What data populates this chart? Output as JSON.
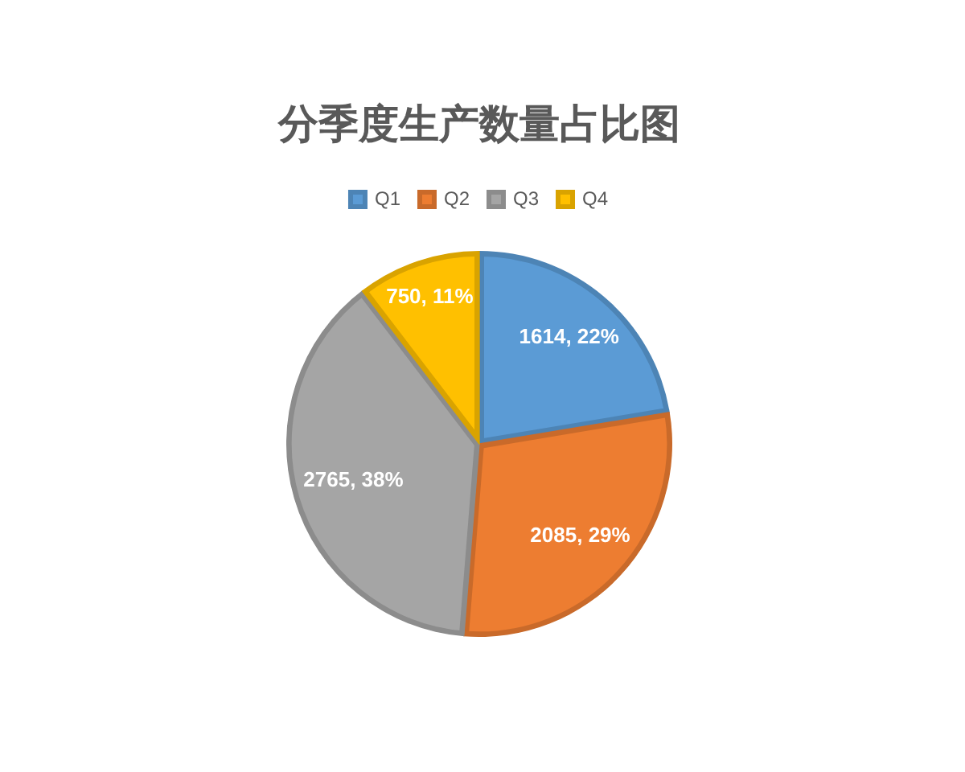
{
  "chart_data": {
    "type": "pie",
    "title": "分季度生产数量占比图",
    "categories": [
      "Q1",
      "Q2",
      "Q3",
      "Q4"
    ],
    "values": [
      1614,
      2085,
      2765,
      750
    ],
    "colors": [
      "#5b9bd5",
      "#ed7d31",
      "#a5a5a5",
      "#ffc000"
    ],
    "value_labels": [
      "1614, 22%",
      "2085, 29%",
      "2765, 38%",
      "750, 11%"
    ],
    "legend": "top"
  }
}
